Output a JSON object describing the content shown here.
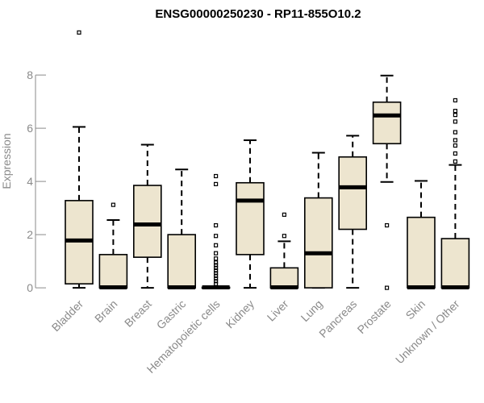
{
  "chart_data": {
    "type": "box",
    "title": "ENSG00000250230 - RP11-855O10.2",
    "xlabel": "",
    "ylabel": "Expression",
    "ylim": [
      -0.3,
      9.7
    ],
    "yticks": [
      0,
      2,
      4,
      6,
      8
    ],
    "box_fill": "#ede5cf",
    "categories": [
      "Bladder",
      "Brain",
      "Breast",
      "Gastric",
      "Hematopoietic cells",
      "Kidney",
      "Liver",
      "Lung",
      "Pancreas",
      "Prostate",
      "Skin",
      "Unknown / Other"
    ],
    "boxes": [
      {
        "whisker_low": 0.0,
        "q1": 0.15,
        "median": 1.78,
        "q3": 3.28,
        "whisker_high": 6.05,
        "outliers": [
          9.6
        ]
      },
      {
        "whisker_low": 0.0,
        "q1": 0.0,
        "median": 0.02,
        "q3": 1.25,
        "whisker_high": 2.55,
        "outliers": [
          3.12
        ]
      },
      {
        "whisker_low": 0.0,
        "q1": 1.15,
        "median": 2.38,
        "q3": 3.85,
        "whisker_high": 5.38,
        "outliers": []
      },
      {
        "whisker_low": 0.0,
        "q1": 0.0,
        "median": 0.02,
        "q3": 2.0,
        "whisker_high": 4.45,
        "outliers": []
      },
      {
        "whisker_low": 0.0,
        "q1": 0.0,
        "median": 0.02,
        "q3": 0.02,
        "whisker_high": 0.05,
        "outliers": [
          0.15,
          0.25,
          0.35,
          0.45,
          0.55,
          0.65,
          0.75,
          0.85,
          0.95,
          1.1,
          1.3,
          1.6,
          1.95,
          2.35,
          3.9,
          4.2
        ]
      },
      {
        "whisker_low": 0.0,
        "q1": 1.25,
        "median": 3.28,
        "q3": 3.95,
        "whisker_high": 5.55,
        "outliers": []
      },
      {
        "whisker_low": 0.0,
        "q1": 0.0,
        "median": 0.02,
        "q3": 0.75,
        "whisker_high": 1.75,
        "outliers": [
          1.95,
          2.75
        ]
      },
      {
        "whisker_low": 0.0,
        "q1": 0.0,
        "median": 1.3,
        "q3": 3.38,
        "whisker_high": 5.08,
        "outliers": []
      },
      {
        "whisker_low": 0.0,
        "q1": 2.2,
        "median": 3.78,
        "q3": 4.92,
        "whisker_high": 5.72,
        "outliers": []
      },
      {
        "whisker_low": 3.98,
        "q1": 5.42,
        "median": 6.48,
        "q3": 6.98,
        "whisker_high": 7.98,
        "outliers": [
          2.35,
          0.0
        ]
      },
      {
        "whisker_low": 0.0,
        "q1": 0.0,
        "median": 0.02,
        "q3": 2.65,
        "whisker_high": 4.02,
        "outliers": []
      },
      {
        "whisker_low": 0.0,
        "q1": 0.0,
        "median": 0.02,
        "q3": 1.85,
        "whisker_high": 4.62,
        "outliers": [
          4.75,
          5.05,
          5.35,
          5.55,
          5.85,
          6.25,
          6.5,
          6.65,
          7.05
        ]
      }
    ]
  }
}
